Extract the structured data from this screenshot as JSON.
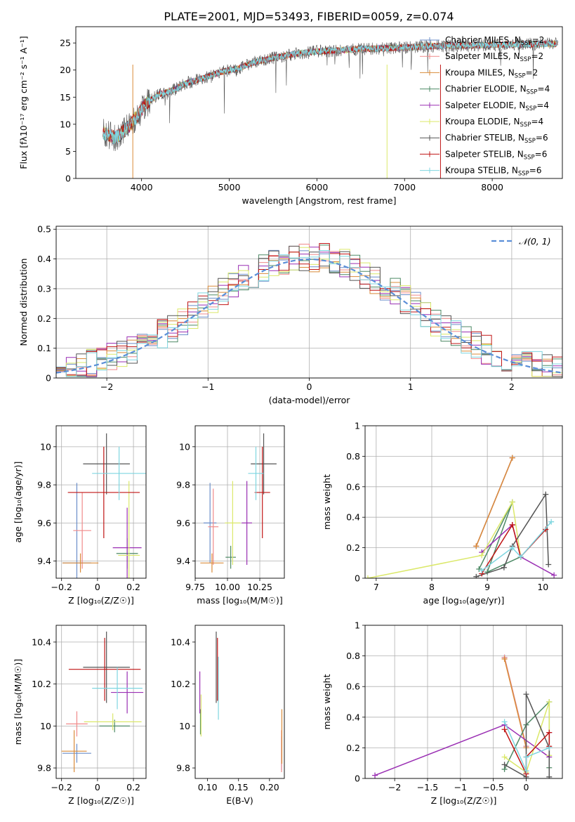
{
  "figure_title": "PLATE=2001, MJD=53493, FIBERID=0059, z=0.074",
  "palette": {
    "Chabrier MILES": "#6b8ec9",
    "Salpeter MILES": "#f08a8a",
    "Kroupa MILES": "#d98b3a",
    "Chabrier ELODIE": "#4e8a66",
    "Salpeter ELODIE": "#9a2fb3",
    "Kroupa ELODIE": "#dbe86a",
    "Chabrier STELIB": "#555555",
    "Salpeter STELIB": "#c01515",
    "Kroupa STELIB": "#7fd6e0"
  },
  "chart_data": [
    {
      "id": "spectrum",
      "type": "line",
      "xlabel": "wavelength [Angstrom, rest frame]",
      "ylabel": "Flux [fλ10⁻¹⁷ erg cm⁻² s⁻¹ A⁻¹]",
      "xlim": [
        3250,
        8800
      ],
      "ylim": [
        0,
        28
      ],
      "xticks": [
        4000,
        5000,
        6000,
        7000,
        8000
      ],
      "yticks": [
        0,
        5,
        10,
        15,
        20,
        25
      ],
      "grid": false,
      "legend_position": "top-right",
      "continuum": {
        "x": [
          3550,
          3700,
          3850,
          3950,
          4050,
          4200,
          4350,
          4500,
          4700,
          4900,
          5100,
          5300,
          5500,
          5700,
          5900,
          6100,
          6300,
          6500,
          6700,
          6900,
          7100,
          7300,
          7500,
          7700,
          7900,
          8100,
          8300,
          8500,
          8750
        ],
        "y": [
          8.5,
          7.5,
          9.5,
          11.5,
          13.8,
          15.5,
          16.2,
          17.5,
          18.5,
          19.6,
          20.3,
          21.5,
          22.2,
          22.8,
          23.3,
          23.5,
          23.7,
          23.9,
          24.0,
          24.1,
          24.2,
          24.4,
          24.5,
          24.5,
          24.6,
          24.7,
          24.7,
          24.8,
          24.9
        ]
      },
      "series": [
        {
          "name": "Chabrier MILES",
          "nssp": "2"
        },
        {
          "name": "Salpeter MILES",
          "nssp": "2"
        },
        {
          "name": "Kroupa MILES",
          "nssp": "2"
        },
        {
          "name": "Chabrier ELODIE",
          "nssp": "4"
        },
        {
          "name": "Salpeter ELODIE",
          "nssp": "4"
        },
        {
          "name": "Kroupa ELODIE",
          "nssp": "4"
        },
        {
          "name": "Chabrier STELIB",
          "nssp": "6"
        },
        {
          "name": "Salpeter STELIB",
          "nssp": "6"
        },
        {
          "name": "Kroupa STELIB",
          "nssp": "6"
        }
      ]
    },
    {
      "id": "residual-hist",
      "type": "line",
      "xlabel": "(data-model)/error",
      "ylabel": "Normed distribution",
      "xlim": [
        -2.5,
        2.5
      ],
      "ylim": [
        0,
        0.51
      ],
      "xticks": [
        -2,
        -1,
        0,
        1,
        2
      ],
      "yticks": [
        0.0,
        0.1,
        0.2,
        0.3,
        0.4,
        0.5
      ],
      "grid": true,
      "legend_position": "top-right",
      "legend_label": "𝒩(0, 1)",
      "gaussian": {
        "mean": 0,
        "sigma": 1
      },
      "bin_width": 0.1
    },
    {
      "id": "age-vs-z",
      "type": "scatter",
      "xlabel": "Z [log₁₀(Z/Z☉)]",
      "ylabel": "age  [log₁₀(age/yr)]",
      "xlim": [
        -0.23,
        0.27
      ],
      "ylim": [
        9.31,
        10.11
      ],
      "xticks": [
        -0.2,
        0.0,
        0.2
      ],
      "yticks": [
        9.4,
        9.6,
        9.8,
        10.0
      ],
      "grid": true,
      "points": [
        {
          "series": "Chabrier MILES",
          "x": -0.115,
          "xerr": 0.08,
          "y": 9.39,
          "yerr": 0.42
        },
        {
          "series": "Salpeter MILES",
          "x": -0.085,
          "xerr": 0.05,
          "y": 9.56,
          "yerr": 0.2
        },
        {
          "series": "Kroupa MILES",
          "x": -0.095,
          "xerr": 0.1,
          "y": 9.39,
          "yerr": 0.05
        },
        {
          "series": "Chabrier ELODIE",
          "x": 0.165,
          "xerr": 0.06,
          "y": 9.44,
          "yerr": 0.08
        },
        {
          "series": "Salpeter ELODIE",
          "x": 0.165,
          "xerr": 0.08,
          "y": 9.47,
          "yerr": 0.21
        },
        {
          "series": "Kroupa ELODIE",
          "x": 0.175,
          "xerr": 0.06,
          "y": 9.43,
          "yerr": 0.39
        },
        {
          "series": "Chabrier STELIB",
          "x": 0.05,
          "xerr": 0.13,
          "y": 9.91,
          "yerr": 0.16
        },
        {
          "series": "Salpeter STELIB",
          "x": 0.035,
          "xerr": 0.2,
          "y": 9.76,
          "yerr": 0.24
        },
        {
          "series": "Kroupa STELIB",
          "x": 0.12,
          "xerr": 0.15,
          "y": 9.86,
          "yerr": 0.14
        }
      ]
    },
    {
      "id": "age-vs-mass",
      "type": "scatter",
      "xlabel": "mass [log₁₀(M/M☉)]",
      "ylabel": "",
      "xlim": [
        9.75,
        10.44
      ],
      "ylim": [
        9.31,
        10.11
      ],
      "xticks": [
        9.75,
        10.0,
        10.25
      ],
      "xtick_labels": [
        "9.75",
        "10.00",
        "10.25"
      ],
      "yticks": [
        9.4,
        9.6,
        9.8,
        10.0
      ],
      "grid": true,
      "points": [
        {
          "series": "Chabrier MILES",
          "x": 9.865,
          "xerr": 0.05,
          "y": 9.6,
          "yerr": 0.21
        },
        {
          "series": "Salpeter MILES",
          "x": 9.89,
          "xerr": 0.04,
          "y": 9.58,
          "yerr": 0.2
        },
        {
          "series": "Kroupa MILES",
          "x": 9.88,
          "xerr": 0.09,
          "y": 9.39,
          "yerr": 0.05
        },
        {
          "series": "Chabrier ELODIE",
          "x": 10.025,
          "xerr": 0.04,
          "y": 9.42,
          "yerr": 0.06
        },
        {
          "series": "Salpeter ELODIE",
          "x": 10.15,
          "xerr": 0.04,
          "y": 9.6,
          "yerr": 0.22
        },
        {
          "series": "Kroupa ELODIE",
          "x": 10.04,
          "xerr": 0.06,
          "y": 9.6,
          "yerr": 0.22
        },
        {
          "series": "Chabrier STELIB",
          "x": 10.28,
          "xerr": 0.1,
          "y": 9.91,
          "yerr": 0.16
        },
        {
          "series": "Salpeter STELIB",
          "x": 10.27,
          "xerr": 0.06,
          "y": 9.76,
          "yerr": 0.24
        },
        {
          "series": "Kroupa STELIB",
          "x": 10.22,
          "xerr": 0.06,
          "y": 9.86,
          "yerr": 0.14
        }
      ]
    },
    {
      "id": "weight-vs-age",
      "type": "line",
      "xlabel": "age  [log₁₀(age/yr)]",
      "ylabel": "mass weight",
      "xlim": [
        6.8,
        10.35
      ],
      "ylim": [
        0,
        1.0
      ],
      "xticks": [
        7,
        8,
        9,
        10
      ],
      "yticks": [
        0.0,
        0.2,
        0.4,
        0.6,
        0.8,
        1.0
      ],
      "grid": true,
      "series": [
        {
          "name": "Chabrier MILES",
          "x": [
            8.8,
            9.45
          ],
          "y": [
            0.21,
            0.79
          ]
        },
        {
          "name": "Salpeter MILES",
          "x": [
            8.8,
            9.45
          ],
          "y": [
            0.21,
            0.79
          ]
        },
        {
          "name": "Kroupa MILES",
          "x": [
            8.8,
            9.45
          ],
          "y": [
            0.21,
            0.79
          ]
        },
        {
          "name": "Chabrier ELODIE",
          "x": [
            8.85,
            9.45,
            9.0,
            9.6
          ],
          "y": [
            0.06,
            0.5,
            0.04,
            0.14
          ]
        },
        {
          "name": "Salpeter ELODIE",
          "x": [
            8.9,
            9.45,
            9.6,
            10.2
          ],
          "y": [
            0.17,
            0.35,
            0.14,
            0.02
          ]
        },
        {
          "name": "Kroupa ELODIE",
          "x": [
            6.85,
            8.9,
            9.45,
            9.6
          ],
          "y": [
            0.0,
            0.15,
            0.5,
            0.14
          ]
        },
        {
          "name": "Chabrier STELIB",
          "x": [
            8.8,
            9.3,
            9.45,
            10.05,
            10.1
          ],
          "y": [
            0.01,
            0.07,
            0.21,
            0.55,
            0.09
          ]
        },
        {
          "name": "Salpeter STELIB",
          "x": [
            8.9,
            9.45,
            9.6,
            10.05
          ],
          "y": [
            0.03,
            0.35,
            0.14,
            0.32
          ]
        },
        {
          "name": "Kroupa STELIB",
          "x": [
            8.9,
            9.45,
            9.6,
            10.15
          ],
          "y": [
            0.05,
            0.2,
            0.14,
            0.37
          ]
        }
      ]
    },
    {
      "id": "mass-vs-z",
      "type": "scatter",
      "xlabel": "Z [log₁₀(Z/Z☉)]",
      "ylabel": "mass [log₁₀(M/M☉)]",
      "xlim": [
        -0.23,
        0.27
      ],
      "ylim": [
        9.75,
        10.48
      ],
      "xticks": [
        -0.2,
        0.0,
        0.2
      ],
      "yticks": [
        9.8,
        10.0,
        10.2,
        10.4
      ],
      "grid": true,
      "points": [
        {
          "series": "Chabrier MILES",
          "x": -0.115,
          "xerr": 0.08,
          "y": 9.87,
          "yerr": 0.045
        },
        {
          "series": "Salpeter MILES",
          "x": -0.115,
          "xerr": 0.06,
          "y": 10.01,
          "yerr": 0.06
        },
        {
          "series": "Kroupa MILES",
          "x": -0.13,
          "xerr": 0.07,
          "y": 9.88,
          "yerr": 0.1
        },
        {
          "series": "Chabrier ELODIE",
          "x": 0.095,
          "xerr": 0.085,
          "y": 10.0,
          "yerr": 0.03
        },
        {
          "series": "Salpeter ELODIE",
          "x": 0.165,
          "xerr": 0.09,
          "y": 10.16,
          "yerr": 0.1
        },
        {
          "series": "Kroupa ELODIE",
          "x": 0.085,
          "xerr": 0.16,
          "y": 10.02,
          "yerr": 0.04
        },
        {
          "series": "Chabrier STELIB",
          "x": 0.05,
          "xerr": 0.13,
          "y": 10.28,
          "yerr": 0.17
        },
        {
          "series": "Salpeter STELIB",
          "x": 0.04,
          "xerr": 0.2,
          "y": 10.27,
          "yerr": 0.15
        },
        {
          "series": "Kroupa STELIB",
          "x": 0.11,
          "xerr": 0.14,
          "y": 10.18,
          "yerr": 0.1
        }
      ]
    },
    {
      "id": "mass-vs-ebv",
      "type": "scatter",
      "xlabel": "E(B-V)",
      "ylabel": "",
      "xlim": [
        0.08,
        0.224
      ],
      "ylim": [
        9.75,
        10.48
      ],
      "xticks": [
        0.1,
        0.15,
        0.2
      ],
      "xtick_labels": [
        "0.10",
        "0.15",
        "0.20"
      ],
      "yticks": [
        9.8,
        10.0,
        10.2,
        10.4
      ],
      "grid": false,
      "points": [
        {
          "series": "Chabrier MILES",
          "x": 0.2195,
          "xerr": 0.0,
          "y": 9.87,
          "yerr": 0.08
        },
        {
          "series": "Salpeter MILES",
          "x": 0.2195,
          "xerr": 0.0,
          "y": 9.88,
          "yerr": 0.1
        },
        {
          "series": "Kroupa MILES",
          "x": 0.22,
          "xerr": 0.0,
          "y": 9.95,
          "yerr": 0.13
        },
        {
          "series": "Chabrier ELODIE",
          "x": 0.0885,
          "xerr": 0.0,
          "y": 10.02,
          "yerr": 0.06
        },
        {
          "series": "Salpeter ELODIE",
          "x": 0.0875,
          "xerr": 0.0,
          "y": 10.16,
          "yerr": 0.1
        },
        {
          "series": "Kroupa ELODIE",
          "x": 0.0895,
          "xerr": 0.0,
          "y": 10.05,
          "yerr": 0.1
        },
        {
          "series": "Chabrier STELIB",
          "x": 0.114,
          "xerr": 0.0,
          "y": 10.28,
          "yerr": 0.17
        },
        {
          "series": "Salpeter STELIB",
          "x": 0.116,
          "xerr": 0.0,
          "y": 10.27,
          "yerr": 0.15
        },
        {
          "series": "Kroupa STELIB",
          "x": 0.1175,
          "xerr": 0.0,
          "y": 10.18,
          "yerr": 0.15
        }
      ]
    },
    {
      "id": "weight-vs-z",
      "type": "line",
      "xlabel": "Z [log₁₀(Z/Z☉)]",
      "ylabel": "mass weight",
      "xlim": [
        -2.45,
        0.55
      ],
      "ylim": [
        0,
        1.0
      ],
      "xticks": [
        -2.0,
        -1.5,
        -1.0,
        -0.5,
        0.0
      ],
      "yticks": [
        0.0,
        0.2,
        0.4,
        0.6,
        0.8,
        1.0
      ],
      "grid": true,
      "series": [
        {
          "name": "Chabrier MILES",
          "x": [
            -0.33,
            0.0
          ],
          "y": [
            0.79,
            0.21
          ]
        },
        {
          "name": "Salpeter MILES",
          "x": [
            -0.33,
            0.0
          ],
          "y": [
            0.79,
            0.21
          ]
        },
        {
          "name": "Kroupa MILES",
          "x": [
            -0.33,
            0.0
          ],
          "y": [
            0.78,
            0.2
          ]
        },
        {
          "name": "Chabrier ELODIE",
          "x": [
            -0.33,
            0.0,
            0.35,
            0.35
          ],
          "y": [
            0.06,
            0.35,
            0.5,
            0.07
          ]
        },
        {
          "name": "Salpeter ELODIE",
          "x": [
            -2.3,
            -0.33,
            0.35,
            0.35
          ],
          "y": [
            0.02,
            0.35,
            0.14,
            0.3
          ]
        },
        {
          "name": "Kroupa ELODIE",
          "x": [
            -0.33,
            0.0,
            0.35,
            0.35
          ],
          "y": [
            0.14,
            0.04,
            0.5,
            0.15
          ]
        },
        {
          "name": "Chabrier STELIB",
          "x": [
            -0.33,
            0.0,
            0.0,
            0.35,
            0.35
          ],
          "y": [
            0.09,
            0.01,
            0.55,
            0.2,
            0.01
          ]
        },
        {
          "name": "Salpeter STELIB",
          "x": [
            -0.33,
            0.0,
            0.0,
            0.35,
            0.35
          ],
          "y": [
            0.32,
            0.03,
            0.14,
            0.3,
            0.21
          ]
        },
        {
          "name": "Kroupa STELIB",
          "x": [
            -0.33,
            0.0,
            0.0,
            0.35
          ],
          "y": [
            0.37,
            0.05,
            0.14,
            0.2
          ]
        }
      ]
    }
  ]
}
